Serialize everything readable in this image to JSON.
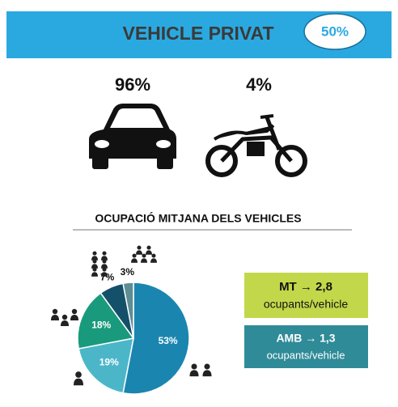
{
  "header": {
    "title": "VEHICLE PRIVAT",
    "badge": "50%"
  },
  "vehicles": [
    {
      "share": "96%"
    },
    {
      "share": "4%"
    }
  ],
  "chart_data": {
    "type": "pie",
    "title": "OCUPACIÓ MITJANA DELS VEHICLES",
    "values": [
      53,
      19,
      18,
      7,
      3
    ],
    "value_labels": [
      "53%",
      "19%",
      "18%",
      "7%",
      "3%"
    ],
    "colors": [
      "#1a86b0",
      "#4cb6c9",
      "#1a9a7c",
      "#14506a",
      "#5d8e94"
    ]
  },
  "boxes": [
    {
      "title": "MT → 2,8",
      "text": "ocupants/vehicle"
    },
    {
      "title": "AMB → 1,3",
      "text": "ocupants/vehicle"
    }
  ]
}
